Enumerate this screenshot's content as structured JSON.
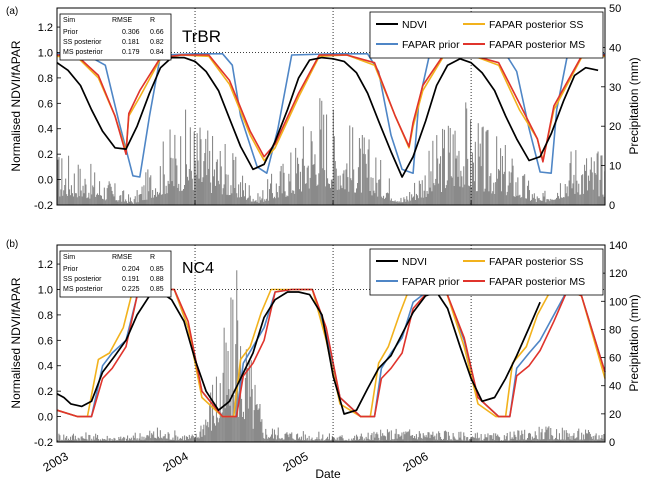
{
  "colors": {
    "ndvi": "#000000",
    "fapar_prior": "#4f86c6",
    "fapar_ss": "#f2b21d",
    "fapar_ms": "#e0342c",
    "precip": "#8a8a8a"
  },
  "shared": {
    "xlabel": "Date",
    "x_ticks": [
      "2003",
      "2004",
      "2005",
      "2006"
    ],
    "xlim": [
      "2003-01-01",
      "2006-12-31"
    ]
  },
  "chart_data": [
    {
      "type": "line",
      "panel_label": "(a)",
      "site": "TrBR",
      "ylabel_left": "Normalised NDVI/fAPAR",
      "ylabel_right": "Precipitation (mm)",
      "ylim_left": [
        -0.2,
        1.35
      ],
      "yticks_left": [
        "-0.2",
        "0.0",
        "0.2",
        "0.4",
        "0.6",
        "0.8",
        "1.0",
        "1.2"
      ],
      "ylim_right": [
        0,
        50
      ],
      "yticks_right": [
        "0",
        "10",
        "20",
        "30",
        "40",
        "50"
      ],
      "legend": [
        "NDVI",
        "FAPAR prior",
        "FAPAR posterior SS",
        "FAPAR posterior MS"
      ],
      "table": {
        "header": [
          "Sim",
          "RMSE",
          "R"
        ],
        "rows": [
          [
            "Prior",
            "0.306",
            "0.66"
          ],
          [
            "SS posterior",
            "0.181",
            "0.82"
          ],
          [
            "MS posterior",
            "0.179",
            "0.84"
          ]
        ]
      },
      "series": [
        {
          "name": "NDVI",
          "color_key": "ndvi",
          "x": [
            2003.0,
            2003.08,
            2003.17,
            2003.25,
            2003.33,
            2003.42,
            2003.5,
            2003.58,
            2003.67,
            2003.75,
            2003.83,
            2003.92,
            2004.0,
            2004.08,
            2004.17,
            2004.25,
            2004.33,
            2004.42,
            2004.5,
            2004.58,
            2004.67,
            2004.75,
            2004.83,
            2004.92,
            2005.0,
            2005.08,
            2005.17,
            2005.25,
            2005.33,
            2005.42,
            2005.5,
            2005.58,
            2005.67,
            2005.75,
            2005.83,
            2005.92,
            2006.0,
            2006.08,
            2006.17,
            2006.25,
            2006.33,
            2006.42,
            2006.5,
            2006.58,
            2006.67,
            2006.75,
            2006.83,
            2006.92
          ],
          "y": [
            0.92,
            0.86,
            0.74,
            0.55,
            0.38,
            0.25,
            0.24,
            0.42,
            0.68,
            0.88,
            0.96,
            0.96,
            0.93,
            0.85,
            0.7,
            0.48,
            0.26,
            0.08,
            0.12,
            0.3,
            0.55,
            0.8,
            0.94,
            0.96,
            0.95,
            0.93,
            0.84,
            0.68,
            0.46,
            0.22,
            0.02,
            0.18,
            0.46,
            0.74,
            0.9,
            0.95,
            0.92,
            0.84,
            0.7,
            0.5,
            0.32,
            0.15,
            0.18,
            0.36,
            0.62,
            0.82,
            0.88,
            0.86
          ]
        },
        {
          "name": "FAPAR prior",
          "color_key": "fapar_prior",
          "x": [
            2003.0,
            2003.2,
            2003.35,
            2003.45,
            2003.55,
            2003.6,
            2003.67,
            2003.75,
            2004.0,
            2004.2,
            2004.27,
            2004.33,
            2004.45,
            2004.52,
            2004.6,
            2004.7,
            2005.0,
            2005.25,
            2005.33,
            2005.42,
            2005.5,
            2005.58,
            2005.62,
            2005.7,
            2006.0,
            2006.25,
            2006.33,
            2006.42,
            2006.5,
            2006.58,
            2006.62,
            2006.7,
            2006.97
          ],
          "y": [
            0.99,
            0.99,
            0.9,
            0.45,
            0.03,
            0.02,
            0.5,
            0.98,
            0.99,
            0.99,
            0.9,
            0.5,
            0.1,
            0.05,
            0.4,
            0.98,
            0.99,
            0.99,
            0.85,
            0.35,
            0.08,
            0.05,
            0.6,
            0.99,
            0.99,
            0.99,
            0.85,
            0.4,
            0.06,
            0.05,
            0.55,
            0.99,
            0.99
          ]
        },
        {
          "name": "FAPAR posterior SS",
          "color_key": "fapar_ss",
          "x": [
            2003.0,
            2003.15,
            2003.3,
            2003.42,
            2003.5,
            2003.52,
            2003.6,
            2003.75,
            2003.9,
            2004.1,
            2004.25,
            2004.4,
            2004.5,
            2004.58,
            2004.75,
            2004.9,
            2005.1,
            2005.3,
            2005.45,
            2005.55,
            2005.58,
            2005.65,
            2005.8,
            2006.0,
            2006.2,
            2006.35,
            2006.48,
            2006.52,
            2006.6,
            2006.8,
            2006.97
          ],
          "y": [
            0.97,
            0.96,
            0.8,
            0.5,
            0.22,
            0.5,
            0.65,
            0.95,
            0.98,
            0.97,
            0.75,
            0.35,
            0.15,
            0.25,
            0.65,
            0.97,
            0.98,
            0.9,
            0.5,
            0.25,
            0.42,
            0.7,
            0.97,
            0.98,
            0.9,
            0.55,
            0.32,
            0.15,
            0.55,
            0.96,
            0.97
          ]
        },
        {
          "name": "FAPAR posterior MS",
          "color_key": "fapar_ms",
          "x": [
            2003.0,
            2003.15,
            2003.3,
            2003.42,
            2003.5,
            2003.52,
            2003.6,
            2003.75,
            2003.9,
            2004.1,
            2004.25,
            2004.4,
            2004.5,
            2004.58,
            2004.75,
            2004.9,
            2005.1,
            2005.3,
            2005.45,
            2005.55,
            2005.58,
            2005.65,
            2005.8,
            2006.0,
            2006.2,
            2006.35,
            2006.48,
            2006.52,
            2006.6,
            2006.8,
            2006.97
          ],
          "y": [
            0.98,
            0.97,
            0.82,
            0.5,
            0.2,
            0.52,
            0.7,
            0.96,
            0.98,
            0.98,
            0.78,
            0.38,
            0.18,
            0.28,
            0.68,
            0.98,
            0.98,
            0.92,
            0.5,
            0.26,
            0.45,
            0.74,
            0.98,
            0.98,
            0.92,
            0.6,
            0.32,
            0.14,
            0.58,
            0.97,
            0.98
          ]
        }
      ],
      "precip_peaks": [
        [
          2003.1,
          14
        ],
        [
          2003.3,
          9
        ],
        [
          2003.55,
          2
        ],
        [
          2003.8,
          20
        ],
        [
          2003.95,
          26
        ],
        [
          2004.05,
          22
        ],
        [
          2004.2,
          18
        ],
        [
          2004.45,
          3
        ],
        [
          2004.7,
          16
        ],
        [
          2004.9,
          34
        ],
        [
          2005.05,
          24
        ],
        [
          2005.25,
          18
        ],
        [
          2005.5,
          2
        ],
        [
          2005.75,
          19
        ],
        [
          2005.9,
          32
        ],
        [
          2006.05,
          22
        ],
        [
          2006.25,
          16
        ],
        [
          2006.5,
          2
        ],
        [
          2006.75,
          18
        ],
        [
          2006.95,
          14
        ]
      ]
    },
    {
      "type": "line",
      "panel_label": "(b)",
      "site": "NC4",
      "ylabel_left": "Normalised NDVI/fAPAR",
      "ylabel_right": "Precipitation (mm)",
      "ylim_left": [
        -0.2,
        1.35
      ],
      "yticks_left": [
        "-0.2",
        "0.0",
        "0.2",
        "0.4",
        "0.6",
        "0.8",
        "1.0",
        "1.2"
      ],
      "ylim_right": [
        0,
        140
      ],
      "yticks_right": [
        "0",
        "20",
        "40",
        "60",
        "80",
        "100",
        "120",
        "140"
      ],
      "legend": [
        "NDVI",
        "FAPAR prior",
        "FAPAR posterior SS",
        "FAPAR posterior MS"
      ],
      "table": {
        "header": [
          "Sim",
          "RMSE",
          "R"
        ],
        "rows": [
          [
            "Prior",
            "0.204",
            "0.85"
          ],
          [
            "SS posterior",
            "0.191",
            "0.88"
          ],
          [
            "MS posterior",
            "0.225",
            "0.85"
          ]
        ]
      },
      "series": [
        {
          "name": "NDVI",
          "color_key": "ndvi",
          "x": [
            2003.0,
            2003.05,
            2003.1,
            2003.18,
            2003.25,
            2003.33,
            2003.42,
            2003.5,
            2003.58,
            2003.67,
            2003.75,
            2003.83,
            2003.92,
            2004.0,
            2004.08,
            2004.17,
            2004.25,
            2004.33,
            2004.42,
            2004.5,
            2004.58,
            2004.67,
            2004.75,
            2004.83,
            2004.92,
            2005.0,
            2005.08,
            2005.17,
            2005.25,
            2005.33,
            2005.42,
            2005.5,
            2005.58,
            2005.67,
            2005.75,
            2005.83,
            2005.92,
            2006.0,
            2006.08,
            2006.17,
            2006.25,
            2006.33,
            2006.42,
            2006.5
          ],
          "y": [
            0.18,
            0.15,
            0.1,
            0.08,
            0.12,
            0.35,
            0.48,
            0.6,
            0.8,
            0.95,
            0.98,
            0.92,
            0.75,
            0.45,
            0.2,
            0.05,
            0.12,
            0.3,
            0.5,
            0.78,
            0.92,
            0.98,
            0.98,
            0.96,
            0.8,
            0.32,
            0.02,
            0.05,
            0.22,
            0.38,
            0.48,
            0.65,
            0.82,
            0.95,
            0.98,
            0.85,
            0.55,
            0.3,
            0.12,
            0.15,
            0.3,
            0.48,
            0.7,
            0.9
          ]
        },
        {
          "name": "FAPAR prior",
          "color_key": "fapar_prior",
          "x": [
            2003.0,
            2003.15,
            2003.25,
            2003.33,
            2003.4,
            2003.5,
            2003.58,
            2003.67,
            2003.85,
            2003.95,
            2004.05,
            2004.2,
            2004.3,
            2004.35,
            2004.42,
            2004.5,
            2004.58,
            2004.7,
            2004.85,
            2004.95,
            2005.05,
            2005.2,
            2005.3,
            2005.35,
            2005.42,
            2005.5,
            2005.58,
            2005.7,
            2005.82,
            2005.95,
            2006.05,
            2006.2,
            2006.28,
            2006.33,
            2006.42,
            2006.5,
            2006.6,
            2006.7,
            2006.8,
            2006.97
          ],
          "y": [
            0.05,
            0.0,
            0.0,
            0.4,
            0.5,
            0.6,
            0.95,
            1.0,
            1.0,
            0.7,
            0.2,
            0.0,
            0.0,
            0.42,
            0.55,
            0.7,
            0.98,
            1.0,
            1.0,
            0.65,
            0.15,
            0.0,
            0.0,
            0.38,
            0.5,
            0.62,
            0.9,
            1.0,
            0.98,
            0.6,
            0.15,
            0.0,
            0.0,
            0.38,
            0.5,
            0.6,
            0.8,
            1.0,
            0.95,
            0.35
          ]
        },
        {
          "name": "FAPAR posterior SS",
          "color_key": "fapar_ss",
          "x": [
            2003.0,
            2003.15,
            2003.22,
            2003.3,
            2003.38,
            2003.48,
            2003.55,
            2003.65,
            2003.85,
            2003.95,
            2004.05,
            2004.2,
            2004.28,
            2004.33,
            2004.4,
            2004.48,
            2004.55,
            2004.68,
            2004.85,
            2004.95,
            2005.05,
            2005.2,
            2005.27,
            2005.33,
            2005.4,
            2005.48,
            2005.55,
            2005.68,
            2005.82,
            2005.95,
            2006.05,
            2006.18,
            2006.25,
            2006.3,
            2006.4,
            2006.48,
            2006.58,
            2006.68,
            2006.8,
            2006.97
          ],
          "y": [
            0.05,
            0.0,
            0.0,
            0.45,
            0.5,
            0.7,
            1.0,
            1.0,
            1.0,
            0.7,
            0.15,
            0.0,
            0.0,
            0.45,
            0.55,
            0.82,
            1.0,
            1.0,
            1.0,
            0.6,
            0.1,
            0.0,
            0.0,
            0.42,
            0.55,
            0.8,
            1.0,
            1.0,
            0.98,
            0.55,
            0.1,
            0.0,
            0.0,
            0.42,
            0.55,
            0.8,
            1.0,
            1.0,
            0.95,
            0.3
          ]
        },
        {
          "name": "FAPAR posterior MS",
          "color_key": "fapar_ms",
          "x": [
            2003.0,
            2003.15,
            2003.25,
            2003.33,
            2003.4,
            2003.5,
            2003.58,
            2003.67,
            2003.85,
            2003.95,
            2004.05,
            2004.2,
            2004.3,
            2004.35,
            2004.42,
            2004.5,
            2004.58,
            2004.7,
            2004.85,
            2004.95,
            2005.05,
            2005.2,
            2005.3,
            2005.35,
            2005.42,
            2005.5,
            2005.58,
            2005.7,
            2005.82,
            2005.95,
            2006.05,
            2006.2,
            2006.28,
            2006.33,
            2006.42,
            2006.5,
            2006.6,
            2006.7,
            2006.8,
            2006.97
          ],
          "y": [
            0.05,
            0.0,
            0.0,
            0.3,
            0.38,
            0.55,
            0.95,
            1.0,
            1.0,
            0.75,
            0.2,
            0.0,
            0.0,
            0.32,
            0.42,
            0.6,
            0.98,
            1.0,
            1.0,
            0.7,
            0.15,
            0.0,
            0.0,
            0.3,
            0.38,
            0.5,
            0.85,
            1.0,
            0.98,
            0.62,
            0.15,
            0.0,
            0.0,
            0.32,
            0.4,
            0.52,
            0.75,
            1.0,
            0.95,
            0.35
          ]
        }
      ],
      "precip_peaks": [
        [
          2003.1,
          8
        ],
        [
          2003.5,
          5
        ],
        [
          2003.7,
          12
        ],
        [
          2004.0,
          6
        ],
        [
          2004.3,
          122
        ],
        [
          2004.5,
          14
        ],
        [
          2004.8,
          8
        ],
        [
          2005.1,
          6
        ],
        [
          2005.4,
          10
        ],
        [
          2005.6,
          12
        ],
        [
          2005.9,
          8
        ],
        [
          2006.2,
          6
        ],
        [
          2006.5,
          12
        ],
        [
          2006.8,
          10
        ]
      ]
    }
  ]
}
